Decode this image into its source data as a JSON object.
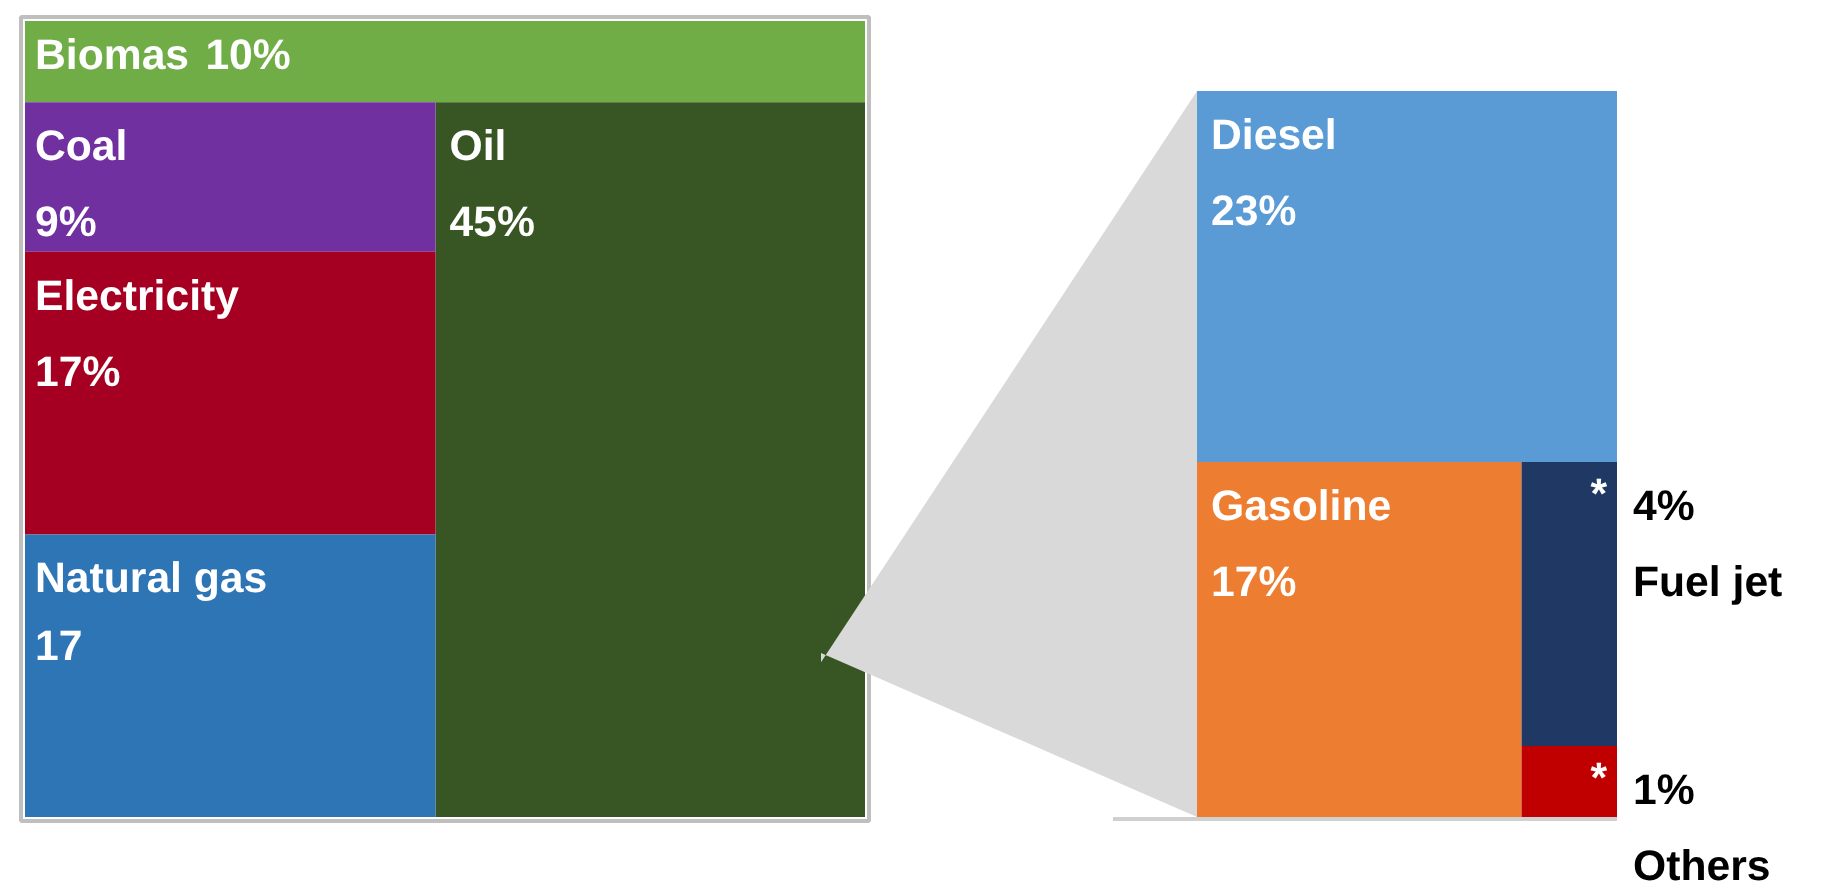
{
  "chart_data": [
    {
      "type": "other",
      "categories": [
        "Biomas",
        "Coal",
        "Electricity",
        "Natural gas",
        "Oil"
      ],
      "values": [
        10,
        9,
        17,
        17,
        45
      ],
      "value_labels": [
        "10%",
        "9%",
        "17%",
        "17",
        "45%"
      ],
      "colors": [
        "#70ad47",
        "#7030a0",
        "#a50021",
        "#2e75b6",
        "#375623"
      ]
    },
    {
      "type": "other",
      "categories": [
        "Diesel",
        "Gasoline",
        "Fuel jet",
        "Others"
      ],
      "values": [
        23,
        17,
        4,
        1
      ],
      "value_labels": [
        "23%",
        "17%",
        "4%",
        "1%"
      ],
      "colors": [
        "#5b9bd5",
        "#ed7d31",
        "#1f3864",
        "#c00000"
      ],
      "annotations": [
        "*",
        "*"
      ]
    }
  ]
}
